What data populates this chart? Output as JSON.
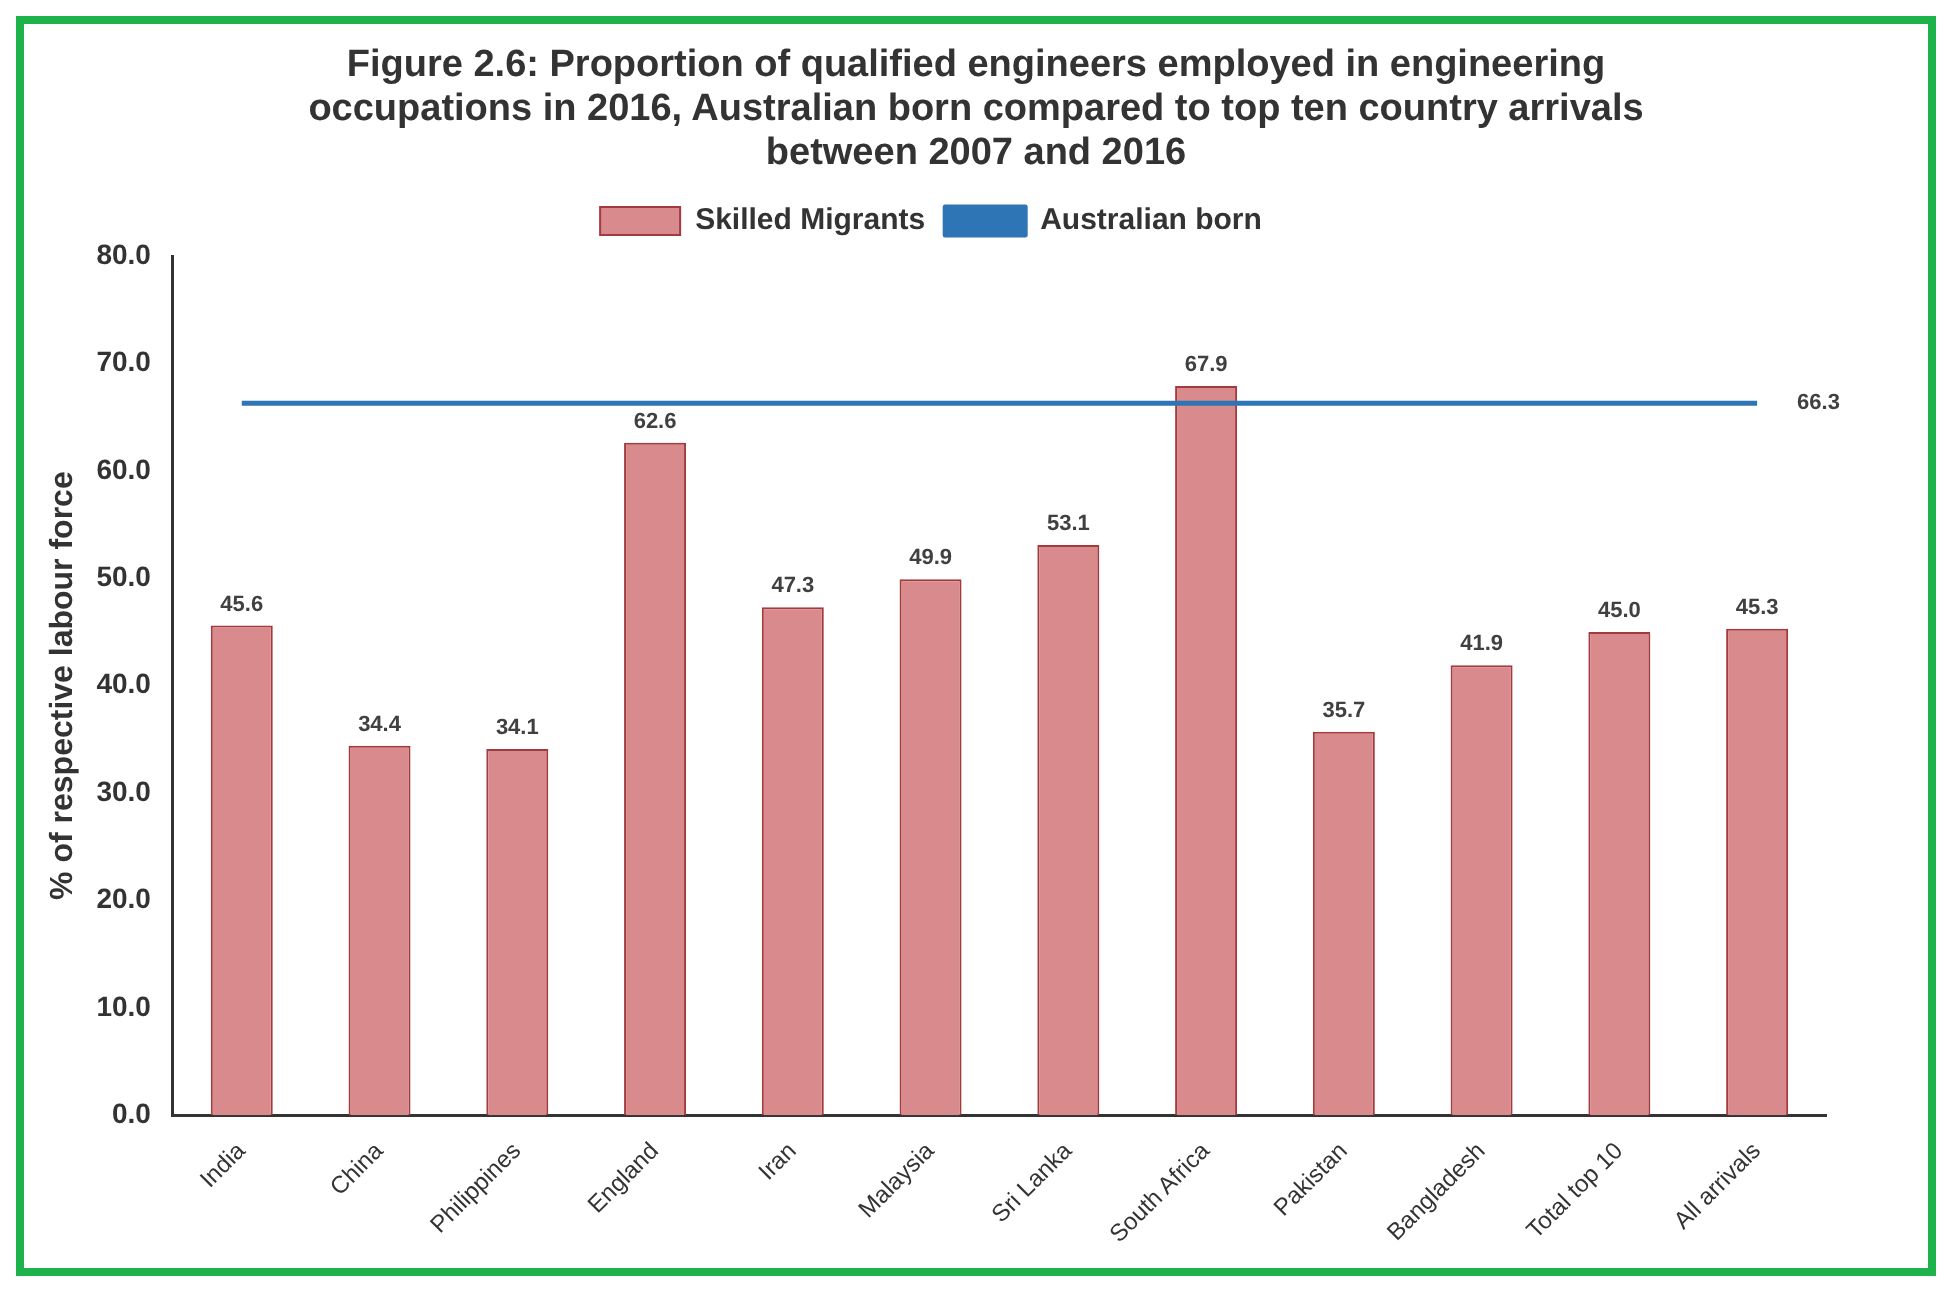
{
  "chart_data": {
    "type": "bar",
    "title": "Figure 2.6: Proportion of qualified engineers employed in engineering occupations in 2016, Australian born compared to top ten country arrivals between 2007 and 2016",
    "ylabel": "% of respective labour force",
    "categories": [
      "India",
      "China",
      "Philippines",
      "England",
      "Iran",
      "Malaysia",
      "Sri Lanka",
      "South Africa",
      "Pakistan",
      "Bangladesh",
      "Total top 10",
      "All arrivals"
    ],
    "series": [
      {
        "name": "Skilled Migrants",
        "color": "#d98a8c",
        "values": [
          45.6,
          34.4,
          34.1,
          62.6,
          47.3,
          49.9,
          53.1,
          67.9,
          35.7,
          41.9,
          45.0,
          45.3
        ],
        "value_labels": [
          "45.6",
          "34.4",
          "34.1",
          "62.6",
          "47.3",
          "49.9",
          "53.1",
          "67.9",
          "35.7",
          "41.9",
          "45.0",
          "45.3"
        ]
      },
      {
        "name": "Australian born",
        "type": "line",
        "color": "#2e75b6",
        "values": [
          66.3,
          66.3,
          66.3,
          66.3,
          66.3,
          66.3,
          66.3,
          66.3,
          66.3,
          66.3,
          66.3,
          66.3
        ],
        "value_labels": [
          null,
          null,
          null,
          null,
          null,
          null,
          null,
          null,
          null,
          null,
          null,
          "66.3"
        ]
      }
    ],
    "ylim": [
      0,
      80
    ],
    "yticks": [
      {
        "value": 0,
        "label": "0.0"
      },
      {
        "value": 10,
        "label": "10.0"
      },
      {
        "value": 20,
        "label": "20.0"
      },
      {
        "value": 30,
        "label": "30.0"
      },
      {
        "value": 40,
        "label": "40.0"
      },
      {
        "value": 50,
        "label": "50.0"
      },
      {
        "value": 60,
        "label": "60.0"
      },
      {
        "value": 70,
        "label": "70.0"
      },
      {
        "value": 80,
        "label": "80.0"
      }
    ],
    "grid": false,
    "legend": "top",
    "marker": "none"
  }
}
